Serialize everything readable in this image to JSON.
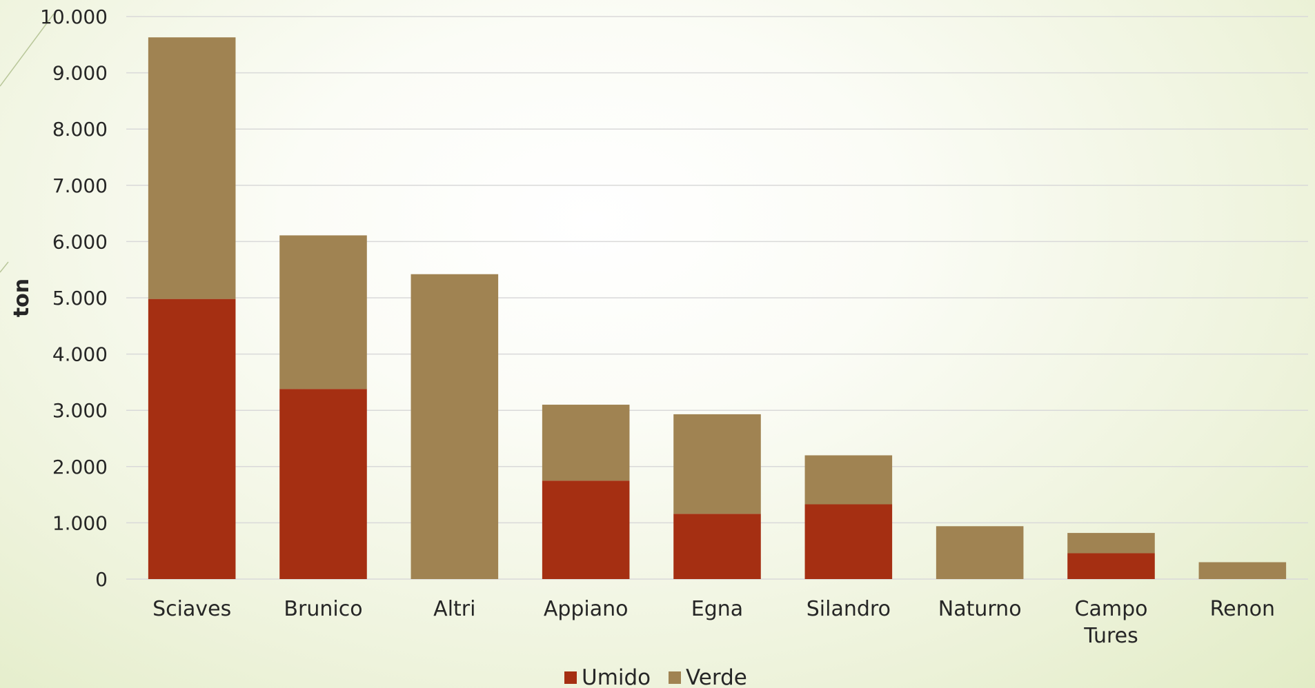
{
  "chart_data": {
    "type": "bar",
    "stacked": true,
    "title": "",
    "xlabel": "",
    "ylabel": "ton",
    "ylim": [
      0,
      10000
    ],
    "yticks": [
      0,
      1000,
      2000,
      3000,
      4000,
      5000,
      6000,
      7000,
      8000,
      9000,
      10000
    ],
    "ytick_labels": [
      "0",
      "1.000",
      "2.000",
      "3.000",
      "4.000",
      "5.000",
      "6.000",
      "7.000",
      "8.000",
      "9.000",
      "10.000"
    ],
    "categories": [
      [
        "Sciaves"
      ],
      [
        "Brunico"
      ],
      [
        "Altri"
      ],
      [
        "Appiano"
      ],
      [
        "Egna"
      ],
      [
        "Silandro"
      ],
      [
        "Naturno"
      ],
      [
        "Campo",
        "Tures"
      ],
      [
        "Renon"
      ]
    ],
    "series": [
      {
        "name": "Umido",
        "color": "#a52f12",
        "values": [
          4980,
          3380,
          0,
          1750,
          1160,
          1330,
          0,
          460,
          0
        ]
      },
      {
        "name": "Verde",
        "color": "#a08352",
        "values": [
          4650,
          2730,
          5420,
          1350,
          1770,
          870,
          940,
          360,
          300
        ]
      }
    ],
    "grid": true,
    "gridline_color": "#d9d9d9",
    "legend_position": "bottom"
  }
}
